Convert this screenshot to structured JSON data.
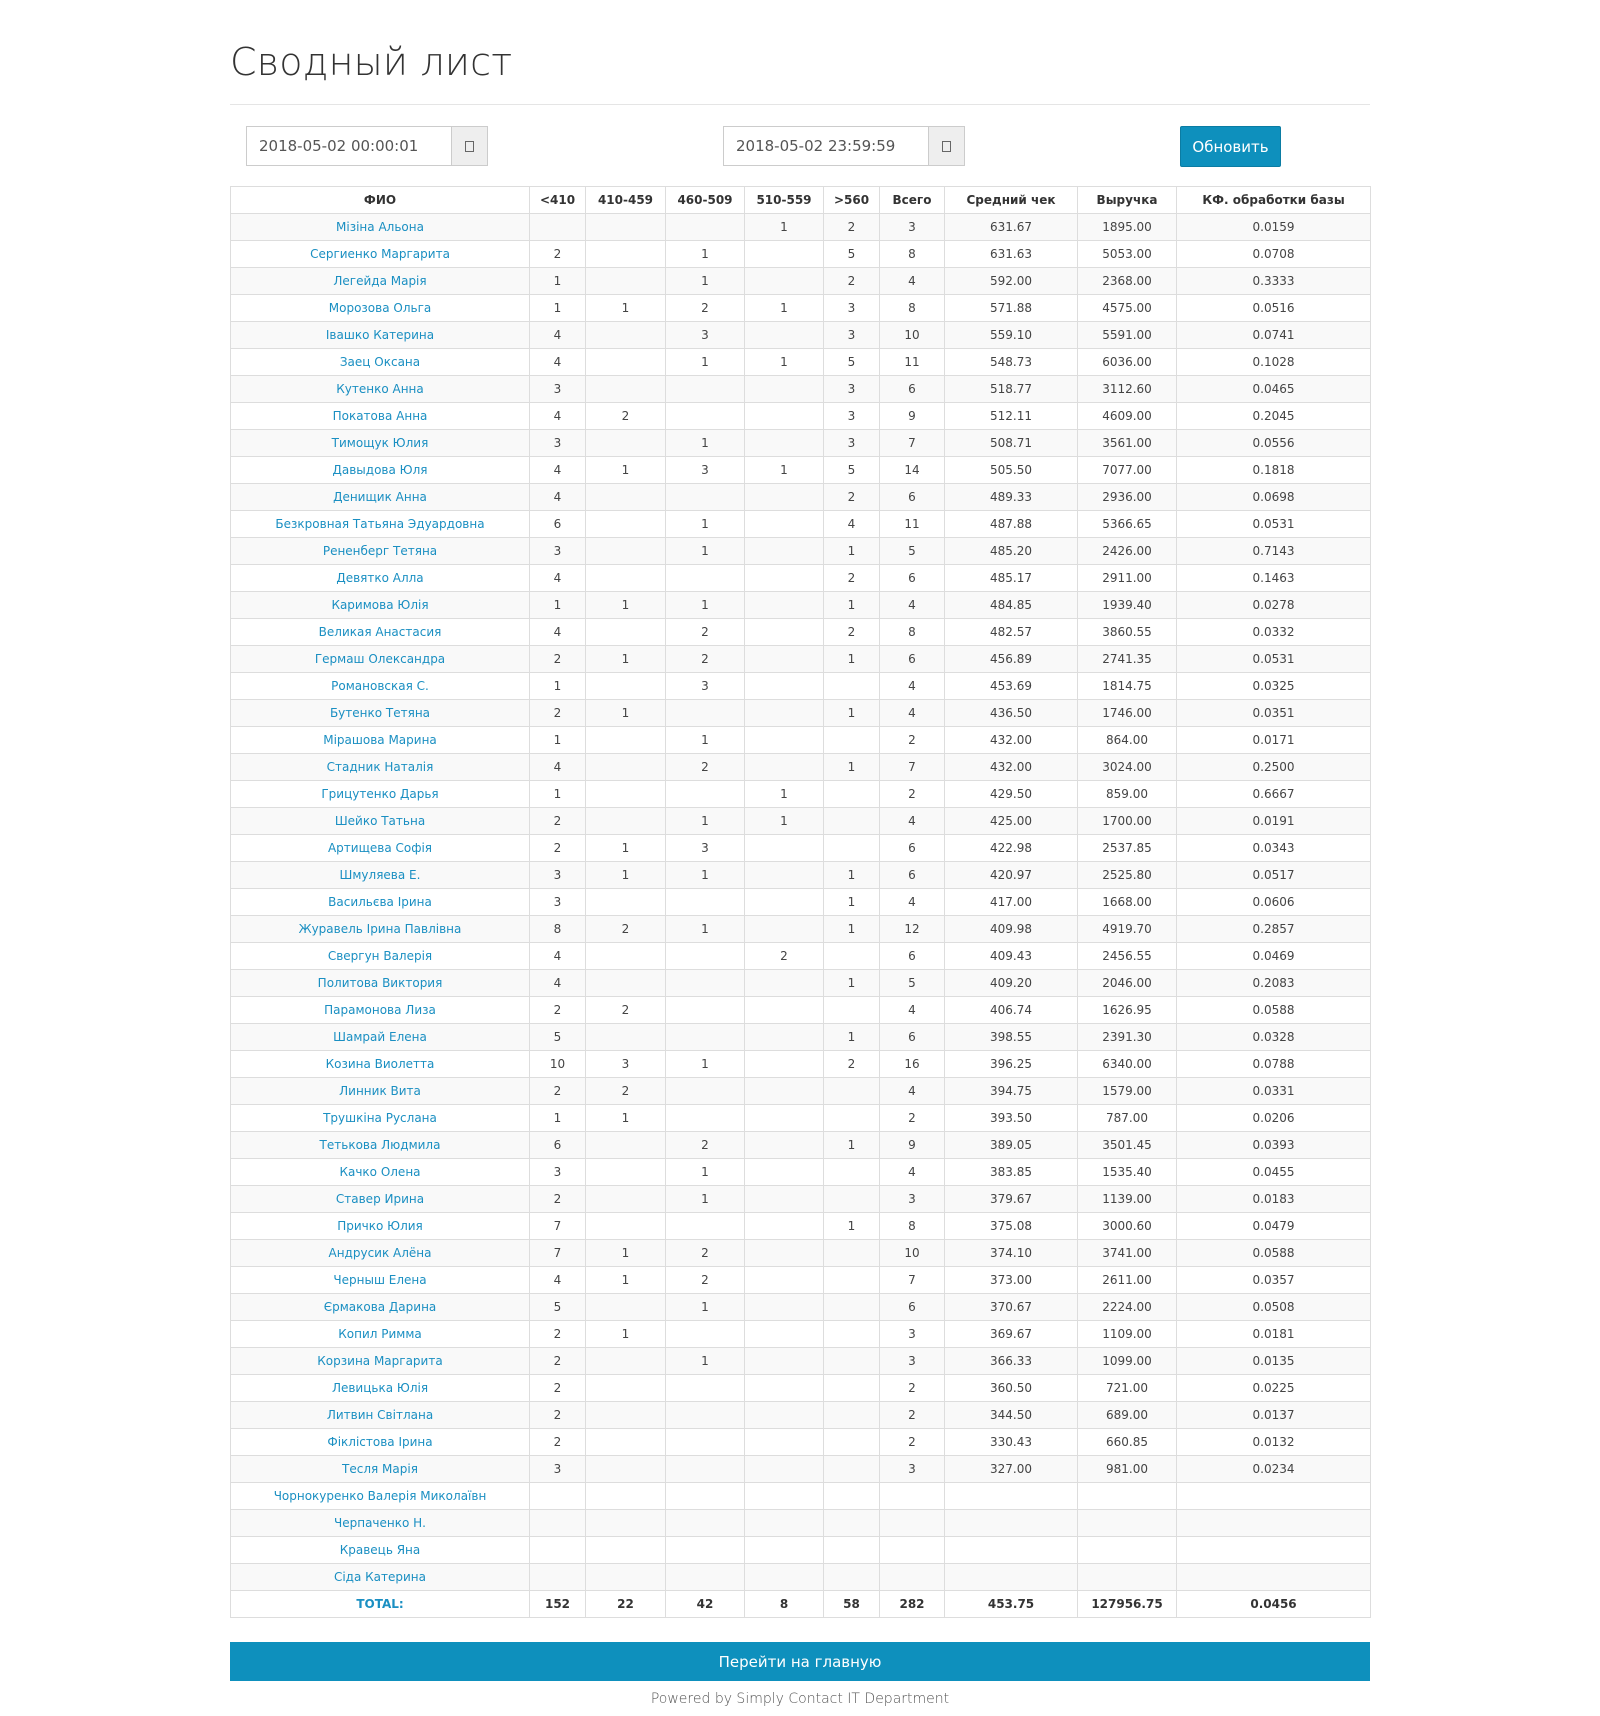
{
  "page": {
    "title": "Сводный лист"
  },
  "filters": {
    "start": "2018-05-02 00:00:01",
    "end": "2018-05-02 23:59:59",
    "refresh_label": "Обновить"
  },
  "table": {
    "columns": [
      "ФИО",
      "<410",
      "410-459",
      "460-509",
      "510-559",
      ">560",
      "Всего",
      "Средний чек",
      "Выручка",
      "КФ. обработки базы"
    ],
    "rows": [
      [
        "Мізіна Альона",
        "",
        "",
        "",
        "1",
        "2",
        "3",
        "631.67",
        "1895.00",
        "0.0159"
      ],
      [
        "Сергиенко Маргарита",
        "2",
        "",
        "1",
        "",
        "5",
        "8",
        "631.63",
        "5053.00",
        "0.0708"
      ],
      [
        "Легейда Марія",
        "1",
        "",
        "1",
        "",
        "2",
        "4",
        "592.00",
        "2368.00",
        "0.3333"
      ],
      [
        "Морозова Ольга",
        "1",
        "1",
        "2",
        "1",
        "3",
        "8",
        "571.88",
        "4575.00",
        "0.0516"
      ],
      [
        "Івашко Катерина",
        "4",
        "",
        "3",
        "",
        "3",
        "10",
        "559.10",
        "5591.00",
        "0.0741"
      ],
      [
        "Заец Оксана",
        "4",
        "",
        "1",
        "1",
        "5",
        "11",
        "548.73",
        "6036.00",
        "0.1028"
      ],
      [
        "Кутенко Анна",
        "3",
        "",
        "",
        "",
        "3",
        "6",
        "518.77",
        "3112.60",
        "0.0465"
      ],
      [
        "Покатова Анна",
        "4",
        "2",
        "",
        "",
        "3",
        "9",
        "512.11",
        "4609.00",
        "0.2045"
      ],
      [
        "Тимощук Юлия",
        "3",
        "",
        "1",
        "",
        "3",
        "7",
        "508.71",
        "3561.00",
        "0.0556"
      ],
      [
        "Давыдова Юля",
        "4",
        "1",
        "3",
        "1",
        "5",
        "14",
        "505.50",
        "7077.00",
        "0.1818"
      ],
      [
        "Денищик Анна",
        "4",
        "",
        "",
        "",
        "2",
        "6",
        "489.33",
        "2936.00",
        "0.0698"
      ],
      [
        "Безкровная Татьяна Эдуардовна",
        "6",
        "",
        "1",
        "",
        "4",
        "11",
        "487.88",
        "5366.65",
        "0.0531"
      ],
      [
        "Рененберг Тетяна",
        "3",
        "",
        "1",
        "",
        "1",
        "5",
        "485.20",
        "2426.00",
        "0.7143"
      ],
      [
        "Девятко Алла",
        "4",
        "",
        "",
        "",
        "2",
        "6",
        "485.17",
        "2911.00",
        "0.1463"
      ],
      [
        "Каримова Юлія",
        "1",
        "1",
        "1",
        "",
        "1",
        "4",
        "484.85",
        "1939.40",
        "0.0278"
      ],
      [
        "Великая Анастасия",
        "4",
        "",
        "2",
        "",
        "2",
        "8",
        "482.57",
        "3860.55",
        "0.0332"
      ],
      [
        "Гермаш Олександра",
        "2",
        "1",
        "2",
        "",
        "1",
        "6",
        "456.89",
        "2741.35",
        "0.0531"
      ],
      [
        "Романовская С.",
        "1",
        "",
        "3",
        "",
        "",
        "4",
        "453.69",
        "1814.75",
        "0.0325"
      ],
      [
        "Бутенко Тетяна",
        "2",
        "1",
        "",
        "",
        "1",
        "4",
        "436.50",
        "1746.00",
        "0.0351"
      ],
      [
        "Мірашова Марина",
        "1",
        "",
        "1",
        "",
        "",
        "2",
        "432.00",
        "864.00",
        "0.0171"
      ],
      [
        "Стадник Наталія",
        "4",
        "",
        "2",
        "",
        "1",
        "7",
        "432.00",
        "3024.00",
        "0.2500"
      ],
      [
        "Грицутенко Дарья",
        "1",
        "",
        "",
        "1",
        "",
        "2",
        "429.50",
        "859.00",
        "0.6667"
      ],
      [
        "Шейко Татьна",
        "2",
        "",
        "1",
        "1",
        "",
        "4",
        "425.00",
        "1700.00",
        "0.0191"
      ],
      [
        "Артищева Софія",
        "2",
        "1",
        "3",
        "",
        "",
        "6",
        "422.98",
        "2537.85",
        "0.0343"
      ],
      [
        "Шмуляева Е.",
        "3",
        "1",
        "1",
        "",
        "1",
        "6",
        "420.97",
        "2525.80",
        "0.0517"
      ],
      [
        "Васильєва Ірина",
        "3",
        "",
        "",
        "",
        "1",
        "4",
        "417.00",
        "1668.00",
        "0.0606"
      ],
      [
        "Журавель Ірина Павлівна",
        "8",
        "2",
        "1",
        "",
        "1",
        "12",
        "409.98",
        "4919.70",
        "0.2857"
      ],
      [
        "Свергун Валерія",
        "4",
        "",
        "",
        "2",
        "",
        "6",
        "409.43",
        "2456.55",
        "0.0469"
      ],
      [
        "Политова Виктория",
        "4",
        "",
        "",
        "",
        "1",
        "5",
        "409.20",
        "2046.00",
        "0.2083"
      ],
      [
        "Парамонова Лиза",
        "2",
        "2",
        "",
        "",
        "",
        "4",
        "406.74",
        "1626.95",
        "0.0588"
      ],
      [
        "Шамрай Елена",
        "5",
        "",
        "",
        "",
        "1",
        "6",
        "398.55",
        "2391.30",
        "0.0328"
      ],
      [
        "Козина Виолетта",
        "10",
        "3",
        "1",
        "",
        "2",
        "16",
        "396.25",
        "6340.00",
        "0.0788"
      ],
      [
        "Линник Вита",
        "2",
        "2",
        "",
        "",
        "",
        "4",
        "394.75",
        "1579.00",
        "0.0331"
      ],
      [
        "Трушкіна Руслана",
        "1",
        "1",
        "",
        "",
        "",
        "2",
        "393.50",
        "787.00",
        "0.0206"
      ],
      [
        "Тетькова Людмила",
        "6",
        "",
        "2",
        "",
        "1",
        "9",
        "389.05",
        "3501.45",
        "0.0393"
      ],
      [
        "Качко Олена",
        "3",
        "",
        "1",
        "",
        "",
        "4",
        "383.85",
        "1535.40",
        "0.0455"
      ],
      [
        "Ставер Ирина",
        "2",
        "",
        "1",
        "",
        "",
        "3",
        "379.67",
        "1139.00",
        "0.0183"
      ],
      [
        "Причко Юлия",
        "7",
        "",
        "",
        "",
        "1",
        "8",
        "375.08",
        "3000.60",
        "0.0479"
      ],
      [
        "Андрусик Алёна",
        "7",
        "1",
        "2",
        "",
        "",
        "10",
        "374.10",
        "3741.00",
        "0.0588"
      ],
      [
        "Черныш Елена",
        "4",
        "1",
        "2",
        "",
        "",
        "7",
        "373.00",
        "2611.00",
        "0.0357"
      ],
      [
        "Єрмакова Дарина",
        "5",
        "",
        "1",
        "",
        "",
        "6",
        "370.67",
        "2224.00",
        "0.0508"
      ],
      [
        "Копил Римма",
        "2",
        "1",
        "",
        "",
        "",
        "3",
        "369.67",
        "1109.00",
        "0.0181"
      ],
      [
        "Корзина Маргарита",
        "2",
        "",
        "1",
        "",
        "",
        "3",
        "366.33",
        "1099.00",
        "0.0135"
      ],
      [
        "Левицька Юлія",
        "2",
        "",
        "",
        "",
        "",
        "2",
        "360.50",
        "721.00",
        "0.0225"
      ],
      [
        "Литвин Світлана",
        "2",
        "",
        "",
        "",
        "",
        "2",
        "344.50",
        "689.00",
        "0.0137"
      ],
      [
        "Фіклістова Ірина",
        "2",
        "",
        "",
        "",
        "",
        "2",
        "330.43",
        "660.85",
        "0.0132"
      ],
      [
        "Тесля Марія",
        "3",
        "",
        "",
        "",
        "",
        "3",
        "327.00",
        "981.00",
        "0.0234"
      ],
      [
        "Чорнокуренко Валерія Миколаївн",
        "",
        "",
        "",
        "",
        "",
        "",
        "",
        "",
        ""
      ],
      [
        "Черпаченко Н.",
        "",
        "",
        "",
        "",
        "",
        "",
        "",
        "",
        ""
      ],
      [
        "Кравець Яна",
        "",
        "",
        "",
        "",
        "",
        "",
        "",
        "",
        ""
      ],
      [
        "Сіда Катерина",
        "",
        "",
        "",
        "",
        "",
        "",
        "",
        "",
        ""
      ]
    ],
    "totals": [
      "TOTAL:",
      "152",
      "22",
      "42",
      "8",
      "58",
      "282",
      "453.75",
      "127956.75",
      "0.0456"
    ]
  },
  "actions": {
    "home_label": "Перейти на главную"
  },
  "footer": {
    "text": "Powered by Simply Contact IT Department"
  },
  "icons": {
    "calendar": "calendar-icon"
  },
  "colors": {
    "accent": "#0e90bd",
    "link": "#1a8fc2"
  }
}
